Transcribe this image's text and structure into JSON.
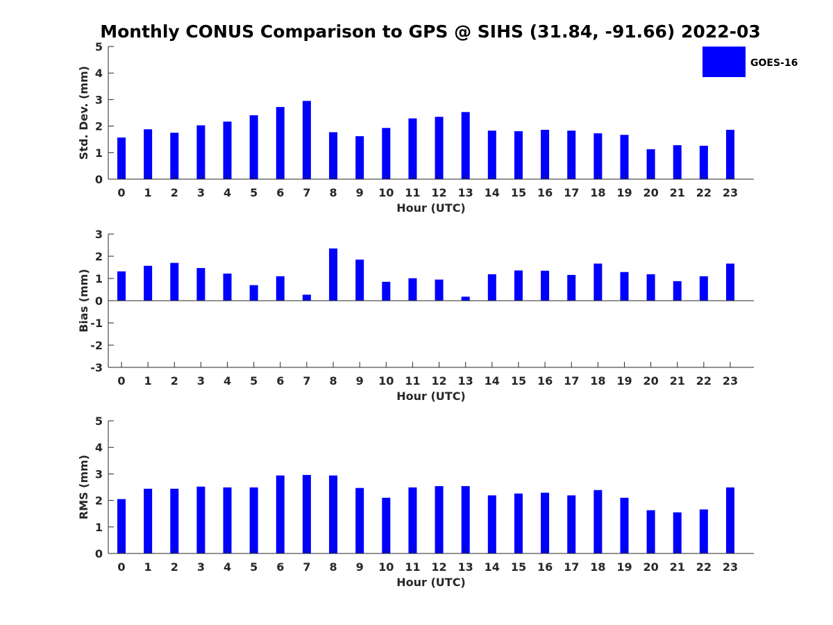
{
  "title": "Monthly CONUS Comparison to GPS @ SIHS (31.84, -91.66) 2022-03",
  "colors": {
    "bar": "#0000ff",
    "axis": "#262626"
  },
  "legend": {
    "label": "GOES-16",
    "placement": "top-right"
  },
  "chart_data": [
    {
      "type": "bar",
      "ylabel": "Std. Dev. (mm)",
      "xlabel": "Hour (UTC)",
      "ylim": [
        0,
        5
      ],
      "yticks": [
        0,
        1,
        2,
        3,
        4,
        5
      ],
      "categories": [
        "0",
        "1",
        "2",
        "3",
        "4",
        "5",
        "6",
        "7",
        "8",
        "9",
        "10",
        "11",
        "12",
        "13",
        "14",
        "15",
        "16",
        "17",
        "18",
        "19",
        "20",
        "21",
        "22",
        "23"
      ],
      "series": [
        {
          "name": "GOES-16",
          "values": [
            1.57,
            1.88,
            1.75,
            2.03,
            2.17,
            2.41,
            2.72,
            2.95,
            1.77,
            1.62,
            1.93,
            2.29,
            2.35,
            2.53,
            1.83,
            1.81,
            1.86,
            1.83,
            1.73,
            1.67,
            1.13,
            1.28,
            1.26,
            1.86
          ]
        }
      ]
    },
    {
      "type": "bar",
      "ylabel": "Bias (mm)",
      "xlabel": "Hour (UTC)",
      "ylim": [
        -3,
        3
      ],
      "yticks": [
        -3,
        -2,
        -1,
        0,
        1,
        2,
        3
      ],
      "categories": [
        "0",
        "1",
        "2",
        "3",
        "4",
        "5",
        "6",
        "7",
        "8",
        "9",
        "10",
        "11",
        "12",
        "13",
        "14",
        "15",
        "16",
        "17",
        "18",
        "19",
        "20",
        "21",
        "22",
        "23"
      ],
      "series": [
        {
          "name": "GOES-16",
          "values": [
            1.32,
            1.57,
            1.7,
            1.47,
            1.22,
            0.7,
            1.1,
            0.27,
            2.35,
            1.85,
            0.85,
            1.01,
            0.95,
            0.18,
            1.19,
            1.36,
            1.35,
            1.16,
            1.67,
            1.29,
            1.19,
            0.88,
            1.1,
            1.67
          ]
        }
      ]
    },
    {
      "type": "bar",
      "ylabel": "RMS (mm)",
      "xlabel": "Hour (UTC)",
      "ylim": [
        0,
        5
      ],
      "yticks": [
        0,
        1,
        2,
        3,
        4,
        5
      ],
      "categories": [
        "0",
        "1",
        "2",
        "3",
        "4",
        "5",
        "6",
        "7",
        "8",
        "9",
        "10",
        "11",
        "12",
        "13",
        "14",
        "15",
        "16",
        "17",
        "18",
        "19",
        "20",
        "21",
        "22",
        "23"
      ],
      "series": [
        {
          "name": "GOES-16",
          "values": [
            2.05,
            2.44,
            2.44,
            2.52,
            2.49,
            2.49,
            2.94,
            2.96,
            2.94,
            2.47,
            2.1,
            2.49,
            2.54,
            2.54,
            2.19,
            2.26,
            2.29,
            2.19,
            2.39,
            2.1,
            1.63,
            1.55,
            1.66,
            2.49
          ]
        }
      ]
    }
  ]
}
